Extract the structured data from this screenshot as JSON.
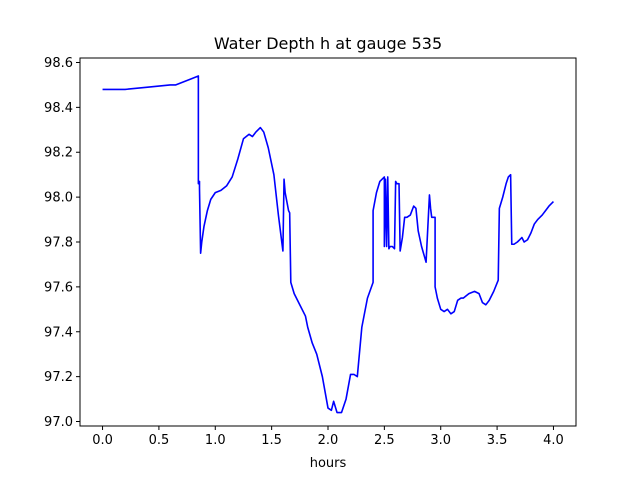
{
  "chart_data": {
    "type": "line",
    "title": "Water Depth h at gauge 535",
    "xlabel": "hours",
    "ylabel": "",
    "xlim": [
      -0.2,
      4.2
    ],
    "ylim": [
      96.98,
      98.62
    ],
    "xticks": [
      0.0,
      0.5,
      1.0,
      1.5,
      2.0,
      2.5,
      3.0,
      3.5,
      4.0
    ],
    "xtick_labels": [
      "0.0",
      "0.5",
      "1.0",
      "1.5",
      "2.0",
      "2.5",
      "3.0",
      "3.5",
      "4.0"
    ],
    "yticks": [
      97.0,
      97.2,
      97.4,
      97.6,
      97.8,
      98.0,
      98.2,
      98.4,
      98.6
    ],
    "ytick_labels": [
      "97.0",
      "97.2",
      "97.4",
      "97.6",
      "97.8",
      "98.0",
      "98.2",
      "98.4",
      "98.6"
    ],
    "grid": false,
    "line_color": "#0000ff",
    "series": [
      {
        "x": [
          0.0,
          0.2,
          0.4,
          0.6,
          0.65,
          0.8,
          0.85,
          0.85,
          0.86,
          0.86,
          0.87,
          0.88,
          0.9,
          0.93,
          0.96,
          1.0,
          1.05,
          1.1,
          1.15,
          1.2,
          1.25,
          1.3,
          1.33,
          1.36,
          1.4,
          1.43,
          1.47,
          1.52,
          1.56,
          1.6,
          1.61,
          1.62,
          1.65,
          1.66,
          1.67,
          1.7,
          1.75,
          1.8,
          1.82,
          1.86,
          1.9,
          1.95,
          2.0,
          2.03,
          2.05,
          2.08,
          2.12,
          2.16,
          2.2,
          2.23,
          2.26,
          2.3,
          2.35,
          2.4,
          2.4,
          2.43,
          2.46,
          2.48,
          2.5,
          2.5,
          2.51,
          2.52,
          2.53,
          2.54,
          2.55,
          2.57,
          2.59,
          2.6,
          2.61,
          2.62,
          2.63,
          2.64,
          2.66,
          2.68,
          2.7,
          2.73,
          2.76,
          2.78,
          2.8,
          2.83,
          2.87,
          2.9,
          2.91,
          2.92,
          2.95,
          2.95,
          2.97,
          3.0,
          3.03,
          3.06,
          3.09,
          3.12,
          3.15,
          3.18,
          3.2,
          3.25,
          3.3,
          3.34,
          3.37,
          3.4,
          3.43,
          3.47,
          3.51,
          3.52,
          3.55,
          3.58,
          3.6,
          3.62,
          3.63,
          3.65,
          3.68,
          3.7,
          3.72,
          3.74,
          3.77,
          3.8,
          3.83,
          3.86,
          3.9,
          3.93,
          3.96,
          4.0
        ],
        "y": [
          98.48,
          98.48,
          98.49,
          98.5,
          98.5,
          98.53,
          98.54,
          98.06,
          98.07,
          98.04,
          97.75,
          97.8,
          97.87,
          97.94,
          97.99,
          98.02,
          98.03,
          98.05,
          98.09,
          98.17,
          98.26,
          98.28,
          98.27,
          98.29,
          98.31,
          98.29,
          98.22,
          98.1,
          97.92,
          97.76,
          98.08,
          98.02,
          97.94,
          97.93,
          97.62,
          97.57,
          97.52,
          97.47,
          97.42,
          97.35,
          97.3,
          97.2,
          97.06,
          97.05,
          97.09,
          97.04,
          97.04,
          97.1,
          97.21,
          97.21,
          97.2,
          97.42,
          97.55,
          97.62,
          97.94,
          98.02,
          98.07,
          98.08,
          98.09,
          97.78,
          98.08,
          97.78,
          98.09,
          97.77,
          97.78,
          97.78,
          97.77,
          98.07,
          98.06,
          98.06,
          98.06,
          97.76,
          97.82,
          97.91,
          97.91,
          97.92,
          97.96,
          97.95,
          97.85,
          97.78,
          97.71,
          98.01,
          97.95,
          97.91,
          97.91,
          97.6,
          97.55,
          97.5,
          97.49,
          97.5,
          97.48,
          97.49,
          97.54,
          97.55,
          97.55,
          97.57,
          97.58,
          97.57,
          97.53,
          97.52,
          97.54,
          97.58,
          97.63,
          97.95,
          98.0,
          98.06,
          98.09,
          98.1,
          97.79,
          97.79,
          97.8,
          97.81,
          97.82,
          97.8,
          97.81,
          97.84,
          97.88,
          97.9,
          97.92,
          97.94,
          97.96,
          97.98
        ]
      }
    ]
  }
}
